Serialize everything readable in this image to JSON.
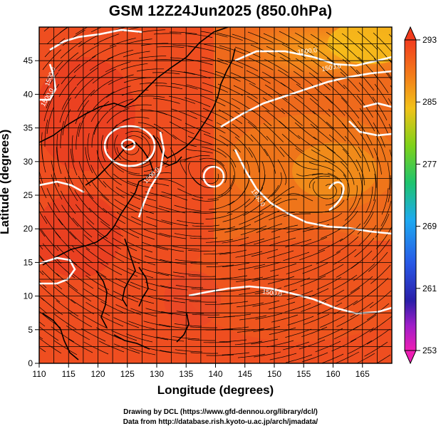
{
  "title": "GSM 12Z24Jun2025 (850.0hPa)",
  "x_axis": {
    "label": "Longitude (degrees)",
    "range": [
      110,
      170
    ],
    "ticks": [
      110,
      115,
      120,
      125,
      130,
      135,
      140,
      145,
      150,
      155,
      160,
      165
    ]
  },
  "y_axis": {
    "label": "Latitude (degrees)",
    "range": [
      0,
      50
    ],
    "ticks": [
      0,
      5,
      10,
      15,
      20,
      25,
      30,
      35,
      40,
      45
    ]
  },
  "colorbar": {
    "ticks": [
      293,
      285,
      277,
      269,
      261,
      253
    ],
    "range": [
      253,
      293
    ]
  },
  "contour_labels": [
    "1500.0",
    "1500.0",
    "1500.0",
    "1500.0",
    "1500.0",
    "1500.0",
    "1500.0"
  ],
  "credits": {
    "line1": "Drawing by DCL (https://www.gfd-dennou.org/library/dcl/)",
    "line2": "Data from http://database.rish.kyoto-u.ac.jp/arch/jmadata/"
  },
  "colors": {
    "field_warm": "#f0461e",
    "field_mid": "#ee6a1a",
    "field_cool": "#f39a1a",
    "coast": "#000000",
    "contour": "#ffffff"
  }
}
